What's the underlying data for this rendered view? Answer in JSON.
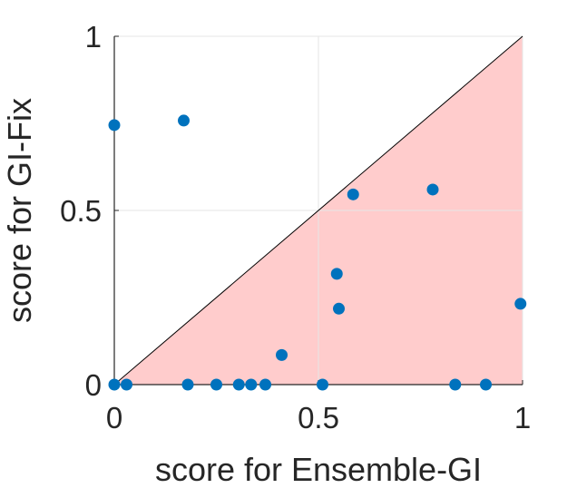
{
  "chart_data": {
    "type": "scatter",
    "xlabel": "score for Ensemble-GI",
    "ylabel": "score for GI-Fix",
    "xlim": [
      0,
      1
    ],
    "ylim": [
      0,
      1
    ],
    "xticks": [
      {
        "value": 0,
        "label": "0"
      },
      {
        "value": 0.5,
        "label": "0.5"
      },
      {
        "value": 1,
        "label": "1"
      }
    ],
    "yticks": [
      {
        "value": 0,
        "label": "0"
      },
      {
        "value": 0.5,
        "label": "0.5"
      },
      {
        "value": 1,
        "label": "1"
      }
    ],
    "grid": true,
    "diagonal_reference_line": true,
    "shaded_region": "below-diagonal",
    "colors": {
      "points": "#0072bd",
      "shade": "#ffcccc",
      "grid": "#e6e6e6",
      "axis": "#262626"
    },
    "series": [
      {
        "points": [
          {
            "x": 0.0,
            "y": 0.745
          },
          {
            "x": 0.17,
            "y": 0.758
          },
          {
            "x": 0.0,
            "y": 0.0
          },
          {
            "x": 0.03,
            "y": 0.0
          },
          {
            "x": 0.18,
            "y": 0.0
          },
          {
            "x": 0.25,
            "y": 0.0
          },
          {
            "x": 0.305,
            "y": 0.0
          },
          {
            "x": 0.335,
            "y": 0.0
          },
          {
            "x": 0.37,
            "y": 0.0
          },
          {
            "x": 0.41,
            "y": 0.085
          },
          {
            "x": 0.51,
            "y": 0.0
          },
          {
            "x": 0.545,
            "y": 0.318
          },
          {
            "x": 0.55,
            "y": 0.218
          },
          {
            "x": 0.585,
            "y": 0.546
          },
          {
            "x": 0.78,
            "y": 0.56
          },
          {
            "x": 0.835,
            "y": 0.0
          },
          {
            "x": 0.91,
            "y": 0.0
          },
          {
            "x": 0.995,
            "y": 0.232
          }
        ]
      }
    ]
  }
}
